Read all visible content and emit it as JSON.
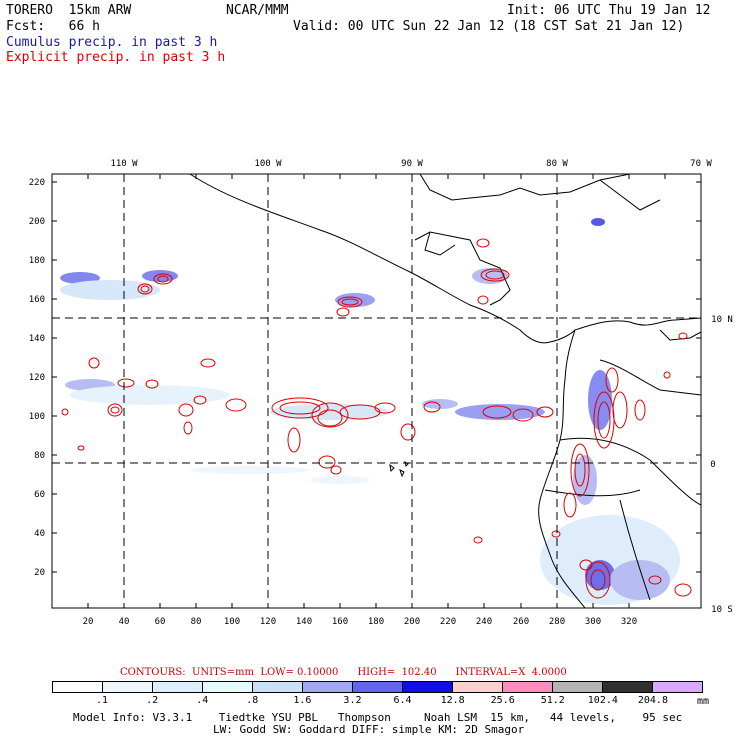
{
  "header": {
    "model": "TORERO  15km ARW",
    "org": "NCAR/MMM",
    "init": "Init: 06 UTC Thu 19 Jan 12",
    "fcst": "Fcst:   66 h",
    "valid": "Valid: 00 UTC Sun 22 Jan 12 (18 CST Sat 21 Jan 12)",
    "cumulus": "Cumulus precip. in past 3 h",
    "explicit": "Explicit precip. in past 3 h",
    "cumulus_color": "#1a1aa6",
    "explicit_color": "#dd0000"
  },
  "axes": {
    "top_lon": [
      "110 W",
      "100 W",
      "90 W",
      "80 W",
      "70 W"
    ],
    "right_lat": [
      "10 N",
      "0",
      "10 S"
    ],
    "x_ticks": [
      "20",
      "40",
      "60",
      "80",
      "100",
      "120",
      "140",
      "160",
      "180",
      "200",
      "220",
      "240",
      "260",
      "280",
      "300",
      "320"
    ],
    "y_ticks": [
      "20",
      "40",
      "60",
      "80",
      "100",
      "120",
      "140",
      "160",
      "180",
      "200",
      "220"
    ]
  },
  "contours": "CONTOURS:  UNITS=mm  LOW= 0.10000      HIGH=  102.40      INTERVAL=X  4.0000",
  "colorbar": {
    "labels": [
      ".1",
      ".2",
      ".4",
      ".8",
      "1.6",
      "3.2",
      "6.4",
      "12.8",
      "25.6",
      "51.2",
      "102.4",
      "204.8"
    ],
    "colors": [
      "#ffffff",
      "#eef6ff",
      "#ddeeff",
      "#e4fcfc",
      "#c8e0f8",
      "#a0a8f0",
      "#6066ee",
      "#1010e6",
      "#fcd0d0",
      "#ff8cbc",
      "#b4b4b4",
      "#303030",
      "#dba8ff"
    ],
    "unit": "mm"
  },
  "footer": {
    "line1": "Model Info: V3.3.1    Tiedtke YSU PBL   Thompson     Noah LSM  15 km,   44 levels,    95 sec",
    "line2": "LW: Godd SW: Goddard DIFF: simple KM: 2D Smagor"
  }
}
